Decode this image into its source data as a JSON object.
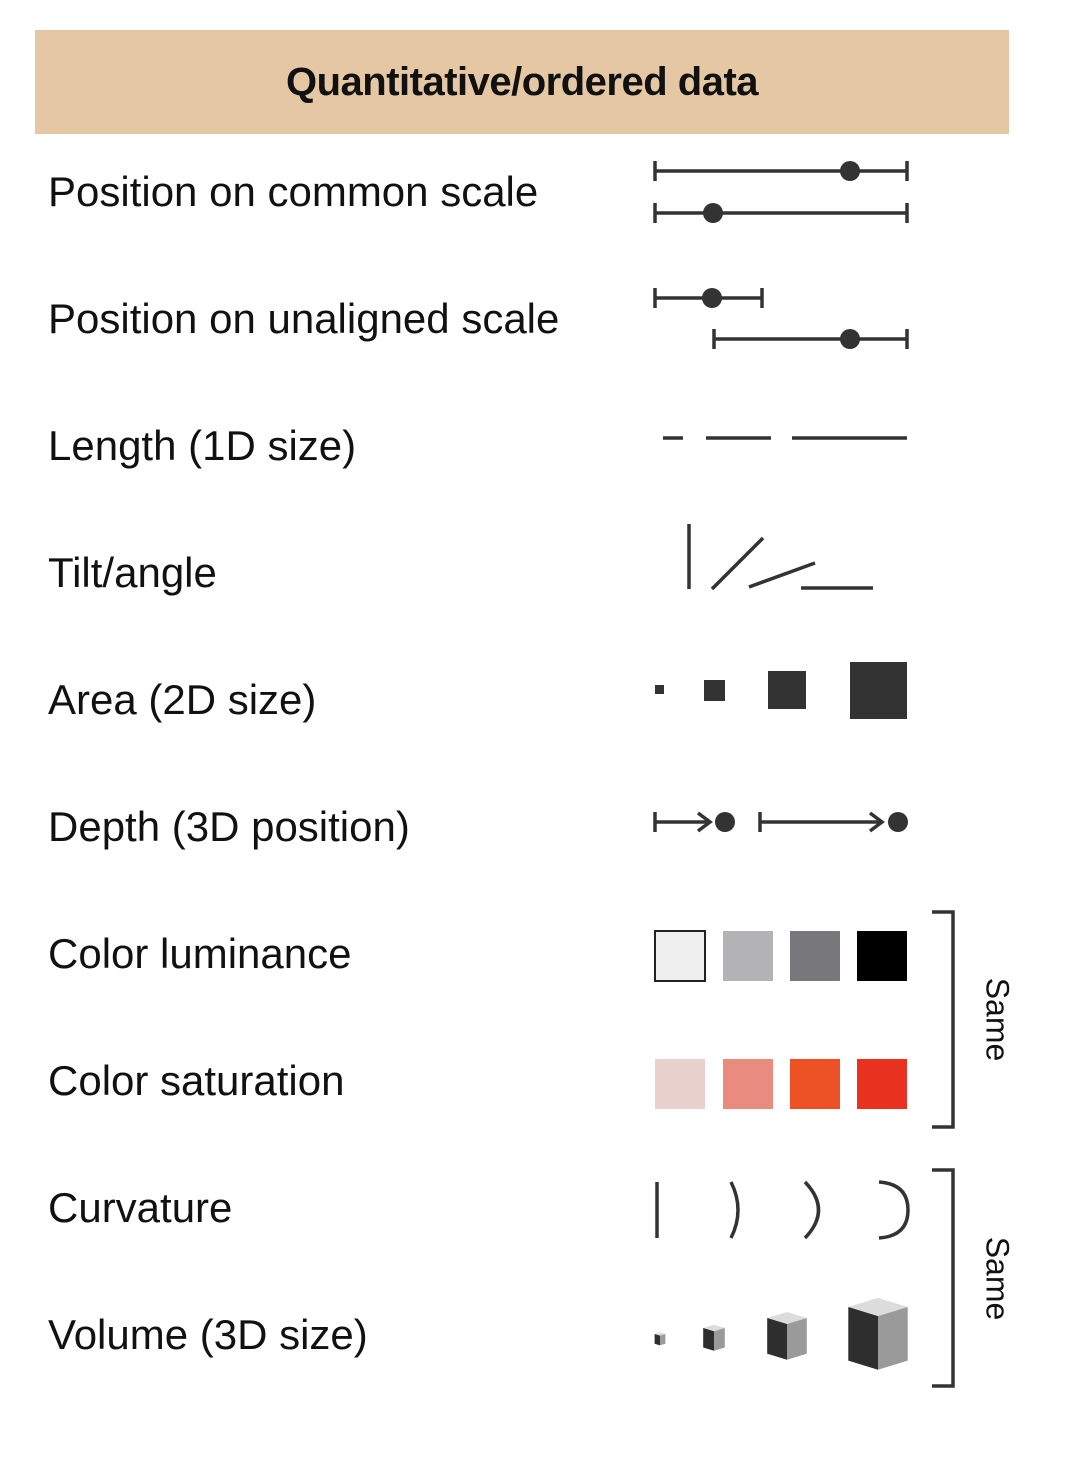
{
  "header": {
    "title": "Quantitative/ordered data",
    "background": "#e5c7a4"
  },
  "channels": [
    {
      "id": "position-common",
      "label": "Position on common scale"
    },
    {
      "id": "position-unaligned",
      "label": "Position on unaligned scale"
    },
    {
      "id": "length",
      "label": "Length (1D size)"
    },
    {
      "id": "tilt",
      "label": "Tilt/angle"
    },
    {
      "id": "area",
      "label": "Area (2D size)"
    },
    {
      "id": "depth",
      "label": "Depth (3D position)"
    },
    {
      "id": "color-luminance",
      "label": "Color luminance",
      "swatches": [
        "#efefef",
        "#b3b3b6",
        "#77777c",
        "#000000"
      ]
    },
    {
      "id": "color-saturation",
      "label": "Color saturation",
      "swatches": [
        "#e8d0cc",
        "#e98b7e",
        "#ec5226",
        "#e8321f"
      ]
    },
    {
      "id": "curvature",
      "label": "Curvature"
    },
    {
      "id": "volume",
      "label": "Volume (3D size)"
    }
  ],
  "brackets": [
    {
      "label": "Same",
      "rows": [
        "color-luminance",
        "color-saturation"
      ]
    },
    {
      "label": "Same",
      "rows": [
        "curvature",
        "volume"
      ]
    }
  ],
  "glyph_color": "#333333"
}
